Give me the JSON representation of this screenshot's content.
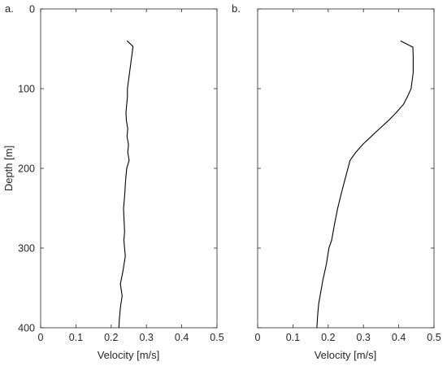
{
  "chart_data": [
    {
      "type": "line",
      "panel_label": "a.",
      "title": "",
      "xlabel": "Velocity [m/s]",
      "ylabel": "Depth [m]",
      "xlim": [
        0,
        0.5
      ],
      "ylim": [
        0,
        400
      ],
      "y_reversed": true,
      "xticks": [
        0,
        0.1,
        0.2,
        0.3,
        0.4,
        0.5
      ],
      "xtick_labels": [
        "0",
        "0.1",
        "0.2",
        "0.3",
        "0.4",
        "0.5"
      ],
      "yticks": [
        0,
        100,
        200,
        300,
        400
      ],
      "ytick_labels": [
        "0",
        "100",
        "200",
        "300",
        "400"
      ],
      "grid": false,
      "series": [
        {
          "velocity": [
            0.245,
            0.262,
            0.258,
            0.255,
            0.252,
            0.249,
            0.246,
            0.246,
            0.244,
            0.242,
            0.243,
            0.247,
            0.245,
            0.249,
            0.247,
            0.251,
            0.244,
            0.242,
            0.24,
            0.239,
            0.237,
            0.235,
            0.236,
            0.237,
            0.238,
            0.236,
            0.24,
            0.233,
            0.226,
            0.231,
            0.226,
            0.223,
            0.222
          ],
          "depth": [
            40,
            47,
            60,
            70,
            80,
            90,
            100,
            110,
            120,
            130,
            140,
            150,
            160,
            170,
            180,
            190,
            200,
            210,
            220,
            230,
            240,
            250,
            260,
            270,
            280,
            290,
            310,
            330,
            345,
            360,
            375,
            390,
            400
          ]
        }
      ]
    },
    {
      "type": "line",
      "panel_label": "b.",
      "title": "",
      "xlabel": "Velocity [m/s]",
      "ylabel": "",
      "xlim": [
        0,
        0.5
      ],
      "ylim": [
        0,
        400
      ],
      "y_reversed": true,
      "xticks": [
        0,
        0.1,
        0.2,
        0.3,
        0.4,
        0.5
      ],
      "xtick_labels": [
        "0",
        "0.1",
        "0.2",
        "0.3",
        "0.4",
        "0.5"
      ],
      "yticks": [
        0,
        100,
        200,
        300,
        400
      ],
      "grid": false,
      "series": [
        {
          "velocity": [
            0.405,
            0.44,
            0.441,
            0.441,
            0.435,
            0.425,
            0.413,
            0.393,
            0.371,
            0.346,
            0.322,
            0.298,
            0.278,
            0.262,
            0.25,
            0.238,
            0.227,
            0.218,
            0.21,
            0.202,
            0.195,
            0.19,
            0.185,
            0.181,
            0.177,
            0.173,
            0.17,
            0.168
          ],
          "depth": [
            40,
            48,
            60,
            80,
            100,
            110,
            120,
            130,
            140,
            150,
            160,
            170,
            180,
            190,
            210,
            230,
            250,
            270,
            290,
            300,
            320,
            330,
            340,
            350,
            360,
            370,
            385,
            400
          ]
        }
      ]
    }
  ]
}
